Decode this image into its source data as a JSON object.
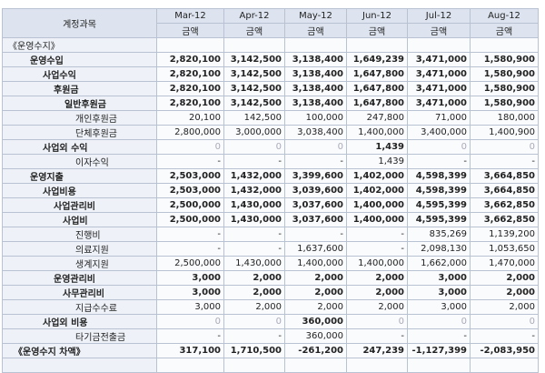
{
  "table": {
    "header": [
      "계정과목",
      "Mar-12",
      "Apr-12",
      "May-12",
      "Jun-12",
      "Jul-12",
      "Aug-12"
    ],
    "subheader": [
      "금액",
      "금액",
      "금액",
      "금액",
      "금액",
      "금액"
    ],
    "rows": [
      {
        "label": "《운영수지》",
        "values": [
          "",
          "",
          "",
          "",
          "",
          ""
        ]
      },
      {
        "label": "운영수입",
        "values": [
          "2,820,100",
          "3,142,500",
          "3,138,400",
          "1,649,239",
          "3,471,000",
          "1,580,900"
        ]
      },
      {
        "label": "사업수익",
        "values": [
          "2,820,100",
          "3,142,500",
          "3,138,400",
          "1,647,800",
          "3,471,000",
          "1,580,900"
        ]
      },
      {
        "label": "후원금",
        "values": [
          "2,820,100",
          "3,142,500",
          "3,138,400",
          "1,647,800",
          "3,471,000",
          "1,580,900"
        ]
      },
      {
        "label": "일반후원금",
        "values": [
          "2,820,100",
          "3,142,500",
          "3,138,400",
          "1,647,800",
          "3,471,000",
          "1,580,900"
        ]
      },
      {
        "label": "개인후원금",
        "values": [
          "20,100",
          "142,500",
          "100,000",
          "247,800",
          "71,000",
          "180,000"
        ]
      },
      {
        "label": "단체후원금",
        "values": [
          "2,800,000",
          "3,000,000",
          "3,038,400",
          "1,400,000",
          "3,400,000",
          "1,400,900"
        ]
      },
      {
        "label": "사업외 수익",
        "values": [
          "0",
          "0",
          "0",
          "1,439",
          "0",
          "0"
        ]
      },
      {
        "label": "이자수익",
        "values": [
          "-",
          "-",
          "-",
          "1,439",
          "-",
          "-"
        ]
      },
      {
        "label": "운영지출",
        "values": [
          "2,503,000",
          "1,432,000",
          "3,399,600",
          "1,402,000",
          "4,598,399",
          "3,664,850"
        ]
      },
      {
        "label": "사업비용",
        "values": [
          "2,503,000",
          "1,432,000",
          "3,039,600",
          "1,402,000",
          "4,598,399",
          "3,664,850"
        ]
      },
      {
        "label": "사업관리비",
        "values": [
          "2,500,000",
          "1,430,000",
          "3,037,600",
          "1,400,000",
          "4,595,399",
          "3,662,850"
        ]
      },
      {
        "label": "사업비",
        "values": [
          "2,500,000",
          "1,430,000",
          "3,037,600",
          "1,400,000",
          "4,595,399",
          "3,662,850"
        ]
      },
      {
        "label": "진행비",
        "values": [
          "-",
          "-",
          "-",
          "-",
          "835,269",
          "1,139,200"
        ]
      },
      {
        "label": "의료지원",
        "values": [
          "-",
          "-",
          "1,637,600",
          "-",
          "2,098,130",
          "1,053,650"
        ]
      },
      {
        "label": "생계지원",
        "values": [
          "2,500,000",
          "1,430,000",
          "1,400,000",
          "1,400,000",
          "1,662,000",
          "1,470,000"
        ]
      },
      {
        "label": "운영관리비",
        "values": [
          "3,000",
          "2,000",
          "2,000",
          "2,000",
          "3,000",
          "2,000"
        ]
      },
      {
        "label": "사무관리비",
        "values": [
          "3,000",
          "2,000",
          "2,000",
          "2,000",
          "3,000",
          "2,000"
        ]
      },
      {
        "label": "지급수수료",
        "values": [
          "3,000",
          "2,000",
          "2,000",
          "2,000",
          "3,000",
          "2,000"
        ]
      },
      {
        "label": "사업외 비용",
        "values": [
          "0",
          "0",
          "360,000",
          "0",
          "0",
          "0"
        ]
      },
      {
        "label": "타기금전출금",
        "values": [
          "-",
          "-",
          "360,000",
          "-",
          "-",
          "-"
        ]
      },
      {
        "label": "《운영수지 차액》",
        "values": [
          "317,100",
          "1,710,500",
          "-261,200",
          "247,239",
          "-1,127,399",
          "-2,083,950"
        ]
      }
    ]
  }
}
